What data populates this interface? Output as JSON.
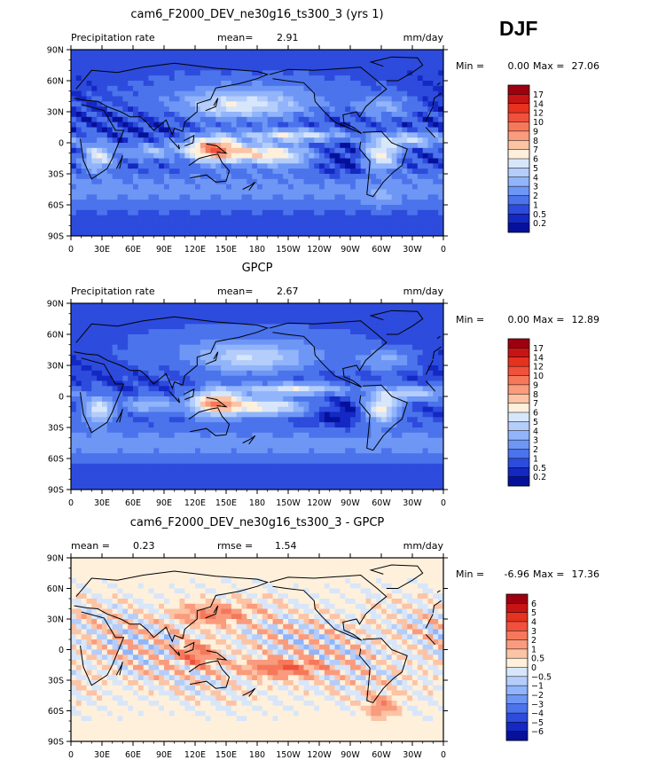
{
  "season": "DJF",
  "colors": {
    "map_frame": "#000000",
    "coast": "#000000"
  },
  "chart_data": [
    {
      "type": "heatmap",
      "title": "cam6_F2000_DEV_ne30g16_ts300_3 (yrs 1)",
      "left_label": "Precipitation rate",
      "stat1_label": "mean=",
      "stat1_value": "2.91",
      "stat2_label": "",
      "stat2_value": "",
      "units": "mm/day",
      "min_label": "Min =",
      "min_value": "0.00",
      "max_label": "Max =",
      "max_value": "27.06",
      "xlabels": [
        "0",
        "30E",
        "60E",
        "90E",
        "120E",
        "150E",
        "180",
        "150W",
        "120W",
        "90W",
        "60W",
        "30W",
        "0"
      ],
      "ylabels": [
        "90N",
        "60N",
        "30N",
        "0",
        "30S",
        "60S",
        "90S"
      ],
      "xlim": [
        0,
        360
      ],
      "ylim": [
        -90,
        90
      ],
      "colorbar_labels": [
        "17",
        "14",
        "12",
        "10",
        "9",
        "8",
        "7",
        "6",
        "5",
        "4",
        "3",
        "2",
        "1",
        "0.5",
        "0.2"
      ],
      "colorbar_colors": [
        "#9e0010",
        "#c81414",
        "#e6321e",
        "#f0503c",
        "#f5785a",
        "#fa9b7d",
        "#fcc3a5",
        "#fff0dc",
        "#d7e6fa",
        "#b4cdfa",
        "#91b4fa",
        "#6e96f5",
        "#4b73eb",
        "#2d4bdc",
        "#1428c3",
        "#05119b"
      ],
      "field": "model_precip"
    },
    {
      "type": "heatmap",
      "title": "GPCP",
      "left_label": "Precipitation rate",
      "stat1_label": "mean=",
      "stat1_value": "2.67",
      "stat2_label": "",
      "stat2_value": "",
      "units": "mm/day",
      "min_label": "Min =",
      "min_value": "0.00",
      "max_label": "Max =",
      "max_value": "12.89",
      "xlabels": [
        "0",
        "30E",
        "60E",
        "90E",
        "120E",
        "150E",
        "180",
        "150W",
        "120W",
        "90W",
        "60W",
        "30W",
        "0"
      ],
      "ylabels": [
        "90N",
        "60N",
        "30N",
        "0",
        "30S",
        "60S",
        "90S"
      ],
      "xlim": [
        0,
        360
      ],
      "ylim": [
        -90,
        90
      ],
      "colorbar_labels": [
        "17",
        "14",
        "12",
        "10",
        "9",
        "8",
        "7",
        "6",
        "5",
        "4",
        "3",
        "2",
        "1",
        "0.5",
        "0.2"
      ],
      "colorbar_colors": [
        "#9e0010",
        "#c81414",
        "#e6321e",
        "#f0503c",
        "#f5785a",
        "#fa9b7d",
        "#fcc3a5",
        "#fff0dc",
        "#d7e6fa",
        "#b4cdfa",
        "#91b4fa",
        "#6e96f5",
        "#4b73eb",
        "#2d4bdc",
        "#1428c3",
        "#05119b"
      ],
      "field": "obs_precip"
    },
    {
      "type": "heatmap",
      "title": "cam6_F2000_DEV_ne30g16_ts300_3 - GPCP",
      "left_label": "",
      "stat1_label": "mean =",
      "stat1_value": "0.23",
      "stat2_label": "rmse =",
      "stat2_value": "1.54",
      "units": "mm/day",
      "min_label": "Min =",
      "min_value": "-6.96",
      "max_label": "Max =",
      "max_value": "17.36",
      "xlabels": [
        "0",
        "30E",
        "60E",
        "90E",
        "120E",
        "150E",
        "180",
        "150W",
        "120W",
        "90W",
        "60W",
        "30W",
        "0"
      ],
      "ylabels": [
        "90N",
        "60N",
        "30N",
        "0",
        "30S",
        "60S",
        "90S"
      ],
      "xlim": [
        0,
        360
      ],
      "ylim": [
        -90,
        90
      ],
      "colorbar_labels": [
        "6",
        "5",
        "4",
        "3",
        "2",
        "1",
        "0.5",
        "0",
        "−0.5",
        "−1",
        "−2",
        "−3",
        "−4",
        "−5",
        "−6"
      ],
      "colorbar_colors": [
        "#9e0010",
        "#c81414",
        "#e6321e",
        "#f0503c",
        "#f5785a",
        "#fa9b7d",
        "#fcc3a5",
        "#fff0dc",
        "#d7e6fa",
        "#b4cdfa",
        "#91b4fa",
        "#6e96f5",
        "#4b73eb",
        "#2d4bdc",
        "#1428c3",
        "#05119b"
      ],
      "field": "difference"
    }
  ]
}
